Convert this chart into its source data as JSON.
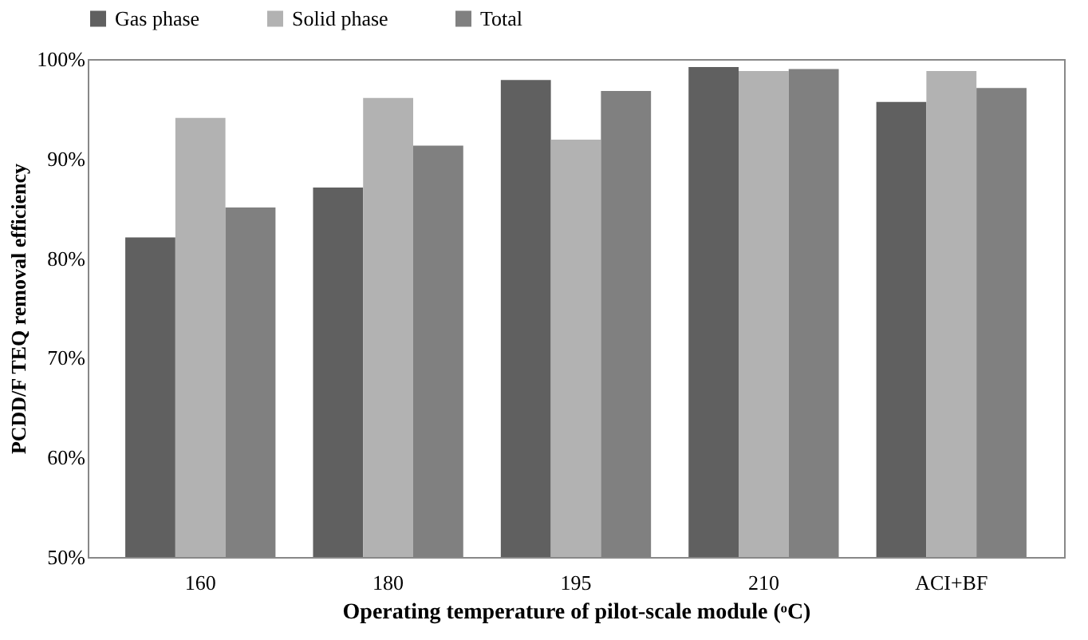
{
  "chart_data": {
    "type": "bar",
    "xlabel": "Operating temperature of pilot-scale module (ᵒC)",
    "ylabel": "PCDD/F TEQ removal efficiency",
    "categories": [
      "160",
      "180",
      "195",
      "210",
      "ACI+BF"
    ],
    "series": [
      {
        "name": "Gas phase",
        "color": "#606060",
        "values": [
          82.1,
          87.1,
          97.9,
          99.2,
          95.7
        ]
      },
      {
        "name": "Solid phase",
        "color": "#b2b2b2",
        "values": [
          94.1,
          96.1,
          91.9,
          98.8,
          98.8
        ]
      },
      {
        "name": "Total",
        "color": "#808080",
        "values": [
          85.1,
          91.3,
          96.8,
          99.0,
          97.1
        ]
      }
    ],
    "ylim": [
      50,
      100
    ],
    "yticks": [
      {
        "value": 50,
        "label": "50%"
      },
      {
        "value": 60,
        "label": "60%"
      },
      {
        "value": 70,
        "label": "70%"
      },
      {
        "value": 80,
        "label": "80%"
      },
      {
        "value": 90,
        "label": "90%"
      },
      {
        "value": 100,
        "label": "100%"
      }
    ],
    "grid": false,
    "legend": "top"
  }
}
